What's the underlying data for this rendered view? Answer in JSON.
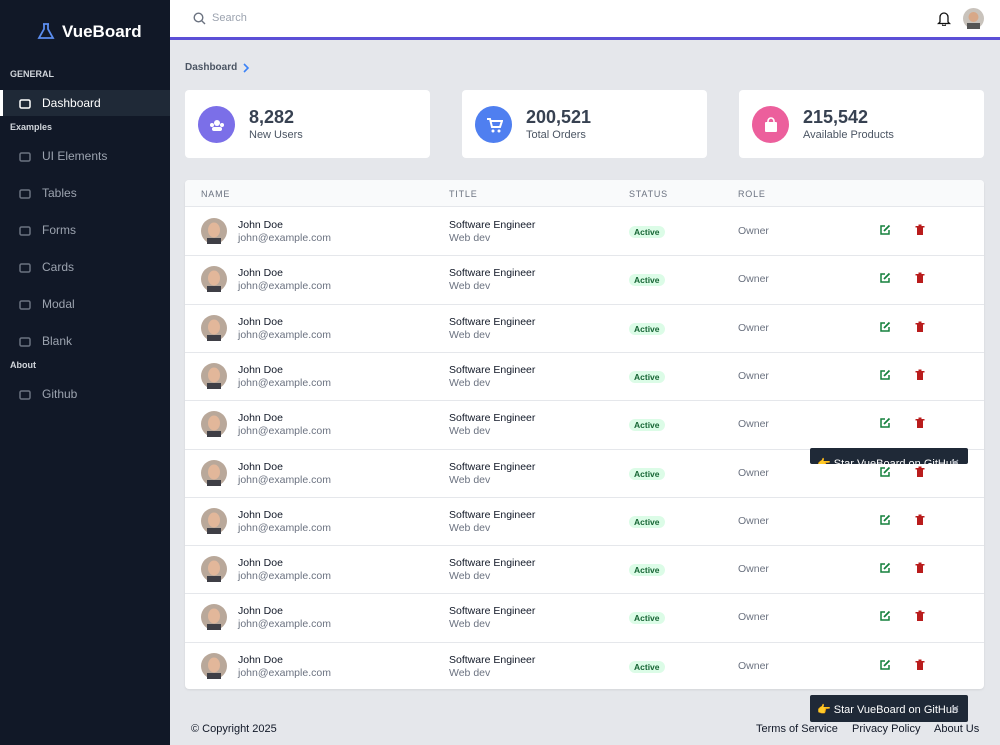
{
  "sidebar": {
    "brand": "VueBoard",
    "sections": [
      {
        "title": "GENERAL",
        "items": [
          "Dashboard"
        ]
      },
      {
        "title": "Examples",
        "items": [
          "UI Elements",
          "Tables",
          "Forms",
          "Cards",
          "Modal",
          "Blank"
        ]
      },
      {
        "title": "About",
        "items": [
          "Github"
        ]
      }
    ]
  },
  "header": {
    "search_placeholder": "Search"
  },
  "breadcrumb": "Dashboard",
  "stats": [
    {
      "value": "8,282",
      "label": "New Users",
      "color": "#7b6fe8"
    },
    {
      "value": "200,521",
      "label": "Total Orders",
      "color": "#4f7ff0"
    },
    {
      "value": "215,542",
      "label": "Available Products",
      "color": "#ec5f9c"
    }
  ],
  "table": {
    "columns": [
      "NAME",
      "TITLE",
      "STATUS",
      "ROLE"
    ],
    "rows": [
      {
        "name": "John Doe",
        "email": "john@example.com",
        "title": "Software Engineer",
        "department": "Web dev",
        "status": "Active",
        "role": "Owner"
      },
      {
        "name": "John Doe",
        "email": "john@example.com",
        "title": "Software Engineer",
        "department": "Web dev",
        "status": "Active",
        "role": "Owner"
      },
      {
        "name": "John Doe",
        "email": "john@example.com",
        "title": "Software Engineer",
        "department": "Web dev",
        "status": "Active",
        "role": "Owner"
      },
      {
        "name": "John Doe",
        "email": "john@example.com",
        "title": "Software Engineer",
        "department": "Web dev",
        "status": "Active",
        "role": "Owner"
      },
      {
        "name": "John Doe",
        "email": "john@example.com",
        "title": "Software Engineer",
        "department": "Web dev",
        "status": "Active",
        "role": "Owner"
      },
      {
        "name": "John Doe",
        "email": "john@example.com",
        "title": "Software Engineer",
        "department": "Web dev",
        "status": "Active",
        "role": "Owner"
      },
      {
        "name": "John Doe",
        "email": "john@example.com",
        "title": "Software Engineer",
        "department": "Web dev",
        "status": "Active",
        "role": "Owner"
      },
      {
        "name": "John Doe",
        "email": "john@example.com",
        "title": "Software Engineer",
        "department": "Web dev",
        "status": "Active",
        "role": "Owner"
      },
      {
        "name": "John Doe",
        "email": "john@example.com",
        "title": "Software Engineer",
        "department": "Web dev",
        "status": "Active",
        "role": "Owner"
      },
      {
        "name": "John Doe",
        "email": "john@example.com",
        "title": "Software Engineer",
        "department": "Web dev",
        "status": "Active",
        "role": "Owner"
      }
    ]
  },
  "toasts": [
    "👉 Star VueBoard on GitHub",
    "👉 Star VueBoard on GitHub"
  ],
  "footer": {
    "copyright": "© Copyright 2025",
    "links": [
      "Terms of Service",
      "Privacy Policy",
      "About Us"
    ]
  }
}
